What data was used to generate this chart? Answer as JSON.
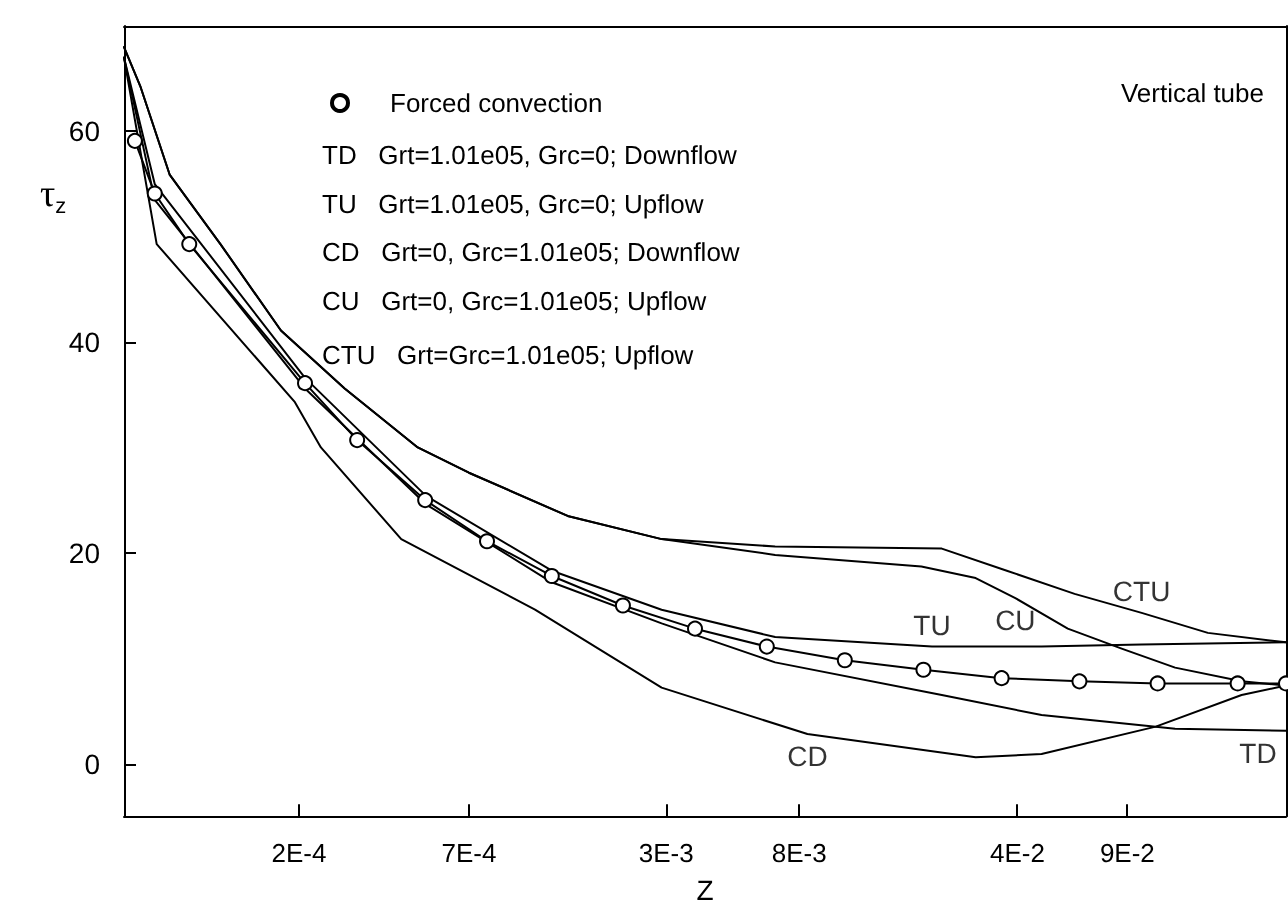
{
  "chart_data": {
    "type": "line",
    "xlabel": "Z",
    "ylabel": "τ$_{z}$",
    "log": "x",
    "xlim": [
      5.5e-05,
      0.29
    ],
    "ylim": [
      -5,
      70
    ],
    "xticks": [
      {
        "value": 0.0002,
        "label": "2E-4"
      },
      {
        "value": 0.0007,
        "label": "7E-4"
      },
      {
        "value": 0.003,
        "label": "3E-3"
      },
      {
        "value": 0.008,
        "label": "8E-3"
      },
      {
        "value": 0.04,
        "label": "4E-2"
      },
      {
        "value": 0.09,
        "label": "9E-2"
      }
    ],
    "yticks": [
      0,
      20,
      40,
      60
    ],
    "grid": false,
    "legend": "top left",
    "series": [
      {
        "name": "Forced convection",
        "color": "#000000",
        "marker": "circle",
        "x": [
          5.96e-05,
          6.9e-05,
          8.9e-05,
          0.000209,
          0.000307,
          0.000507,
          0.0008,
          0.00129,
          0.00218,
          0.00371,
          0.0063,
          0.0112,
          0.02,
          0.0356,
          0.0632,
          0.1125,
          0.203,
          0.29
        ],
        "values": [
          59.1,
          54.1,
          49.3,
          36.1,
          30.7,
          25.0,
          21.1,
          17.8,
          15.0,
          12.8,
          11.1,
          9.8,
          8.9,
          8.1,
          7.8,
          7.6,
          7.6,
          7.6
        ]
      },
      {
        "color": "#000000",
        "marker": "none",
        "x": [
          5.5e-05,
          6.2e-05,
          7.7e-05,
          0.000112,
          0.000175,
          0.00028,
          0.00048,
          0.0007,
          0.00145,
          0.0029,
          0.0067,
          0.0229,
          0.037,
          0.061,
          0.1,
          0.163,
          0.29
        ],
        "values": [
          68,
          64.3,
          55.9,
          49.3,
          41.1,
          35.6,
          30.0,
          27.6,
          23.5,
          21.3,
          20.6,
          20.4,
          18.3,
          16.1,
          14.3,
          12.4,
          11.5
        ]
      },
      {
        "color": "#000000",
        "marker": "none",
        "x": [
          5.5e-05,
          6.2e-05,
          7.7e-05,
          0.000112,
          0.000175,
          0.00028,
          0.00048,
          0.0007,
          0.00145,
          0.0029,
          0.0067,
          0.0197,
          0.0294,
          0.0394,
          0.058,
          0.0863,
          0.128,
          0.209,
          0.29
        ],
        "values": [
          68,
          64.3,
          55.9,
          49.3,
          41.1,
          35.6,
          30.0,
          27.6,
          23.5,
          21.3,
          19.8,
          18.7,
          17.6,
          15.7,
          12.8,
          10.9,
          9.1,
          7.8,
          7.4
        ]
      },
      {
        "color": "#000000",
        "marker": "none",
        "x": [
          5.5e-05,
          6.9e-05,
          0.000209,
          0.00051,
          0.00129,
          0.0029,
          0.0067,
          0.0213,
          0.0478,
          0.1,
          0.29
        ],
        "values": [
          67,
          55,
          36.6,
          25.4,
          18.3,
          14.6,
          12.0,
          11.1,
          11.1,
          11.3,
          11.5
        ]
      },
      {
        "color": "#000000",
        "marker": "none",
        "x": [
          5.5e-05,
          6.9e-05,
          0.000209,
          0.00051,
          0.00129,
          0.0029,
          0.0067,
          0.0229,
          0.0478,
          0.128,
          0.29
        ],
        "values": [
          67,
          53.5,
          35.6,
          24.6,
          17.2,
          13.3,
          9.6,
          6.5,
          4.6,
          3.3,
          3.1
        ]
      },
      {
        "color": "#000000",
        "marker": "none",
        "x": [
          5.5e-05,
          7e-05,
          0.000194,
          0.000235,
          0.000425,
          0.00114,
          0.0029,
          0.0085,
          0.0294,
          0.0478,
          0.111,
          0.209,
          0.29
        ],
        "values": [
          67,
          49.3,
          34.3,
          30.0,
          21.3,
          14.6,
          7.2,
          2.8,
          0.6,
          0.9,
          3.5,
          6.5,
          7.4
        ]
      }
    ],
    "annotations": [
      "TD   Grt=1.01e05, Grc=0; Downflow",
      "TU   Grt=1.01e05, Grc=0; Upflow",
      "CD   Grt=0, Grc=1.01e05; Downflow",
      "CU   Grt=0, Grc=1.01e05; Upflow",
      "CTU   Grt=Grc=1.01e05; Upflow",
      "Vertical tube",
      {
        "text": "CU",
        "x": 0.0394,
        "y": 15.7
      },
      {
        "text": "CTU",
        "x": 0.1,
        "y": 14.3
      },
      {
        "text": "TU",
        "x": 0.0213,
        "y": 11.1
      },
      {
        "text": "CD",
        "x": 0.0085,
        "y": 2.8
      },
      {
        "text": "TD",
        "x": 0.29,
        "y": 3.1
      }
    ]
  }
}
